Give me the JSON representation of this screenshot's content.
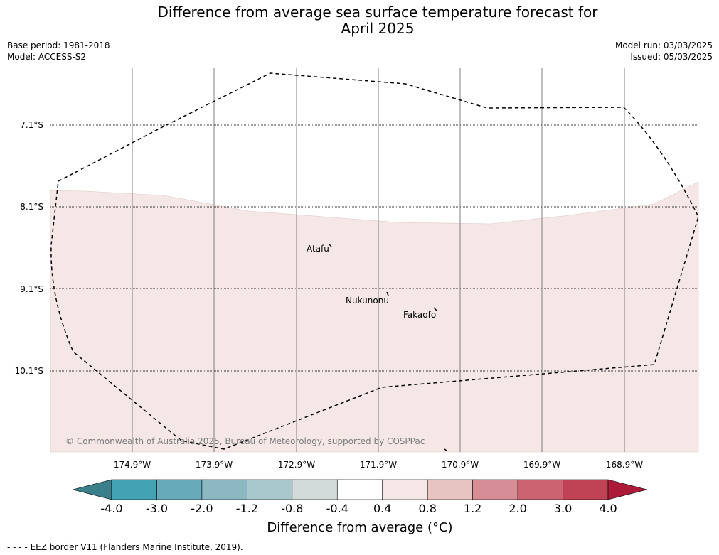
{
  "title_line1": "Difference from average sea surface temperature forecast for",
  "title_line2": "April 2025",
  "meta_left": {
    "base_period": "Base period: 1981-2018",
    "model": "Model: ACCESS-S2"
  },
  "meta_right": {
    "model_run": "Model run: 03/03/2025",
    "issued": "Issued: 05/03/2025"
  },
  "lat_labels": [
    "7.1°S",
    "8.1°S",
    "9.1°S",
    "10.1°S"
  ],
  "lon_labels": [
    "174.9°W",
    "173.9°W",
    "172.9°W",
    "171.9°W",
    "170.9°W",
    "169.9°W",
    "168.9°W"
  ],
  "places": {
    "atafu": "Atafu",
    "nukunonu": "Nukunonu",
    "fakaofo": "Fakaofo"
  },
  "copyright": "© Commonwealth of Australia 2025, Bureau of Meteorology, supported by COSPPac",
  "colorbar": {
    "ticks": [
      "-4.0",
      "-3.0",
      "-2.0",
      "-1.2",
      "-0.8",
      "-0.4",
      "0.4",
      "0.8",
      "1.2",
      "2.0",
      "3.0",
      "4.0"
    ],
    "colors": [
      "#3b7f8a",
      "#43a2b3",
      "#67abbb",
      "#8cb8c2",
      "#a9c8cc",
      "#d1d9d9",
      "#ffffff",
      "#f5e7e6",
      "#e8c4c1",
      "#d68d95",
      "#cb6470",
      "#bf4355",
      "#ab1b39"
    ],
    "label": "Difference from average (°C)"
  },
  "legend_text": "- -  - -  EEZ border V11 (Flanders Marine Institute, 2019).",
  "anomaly_fill_color": "#f4e7e6"
}
